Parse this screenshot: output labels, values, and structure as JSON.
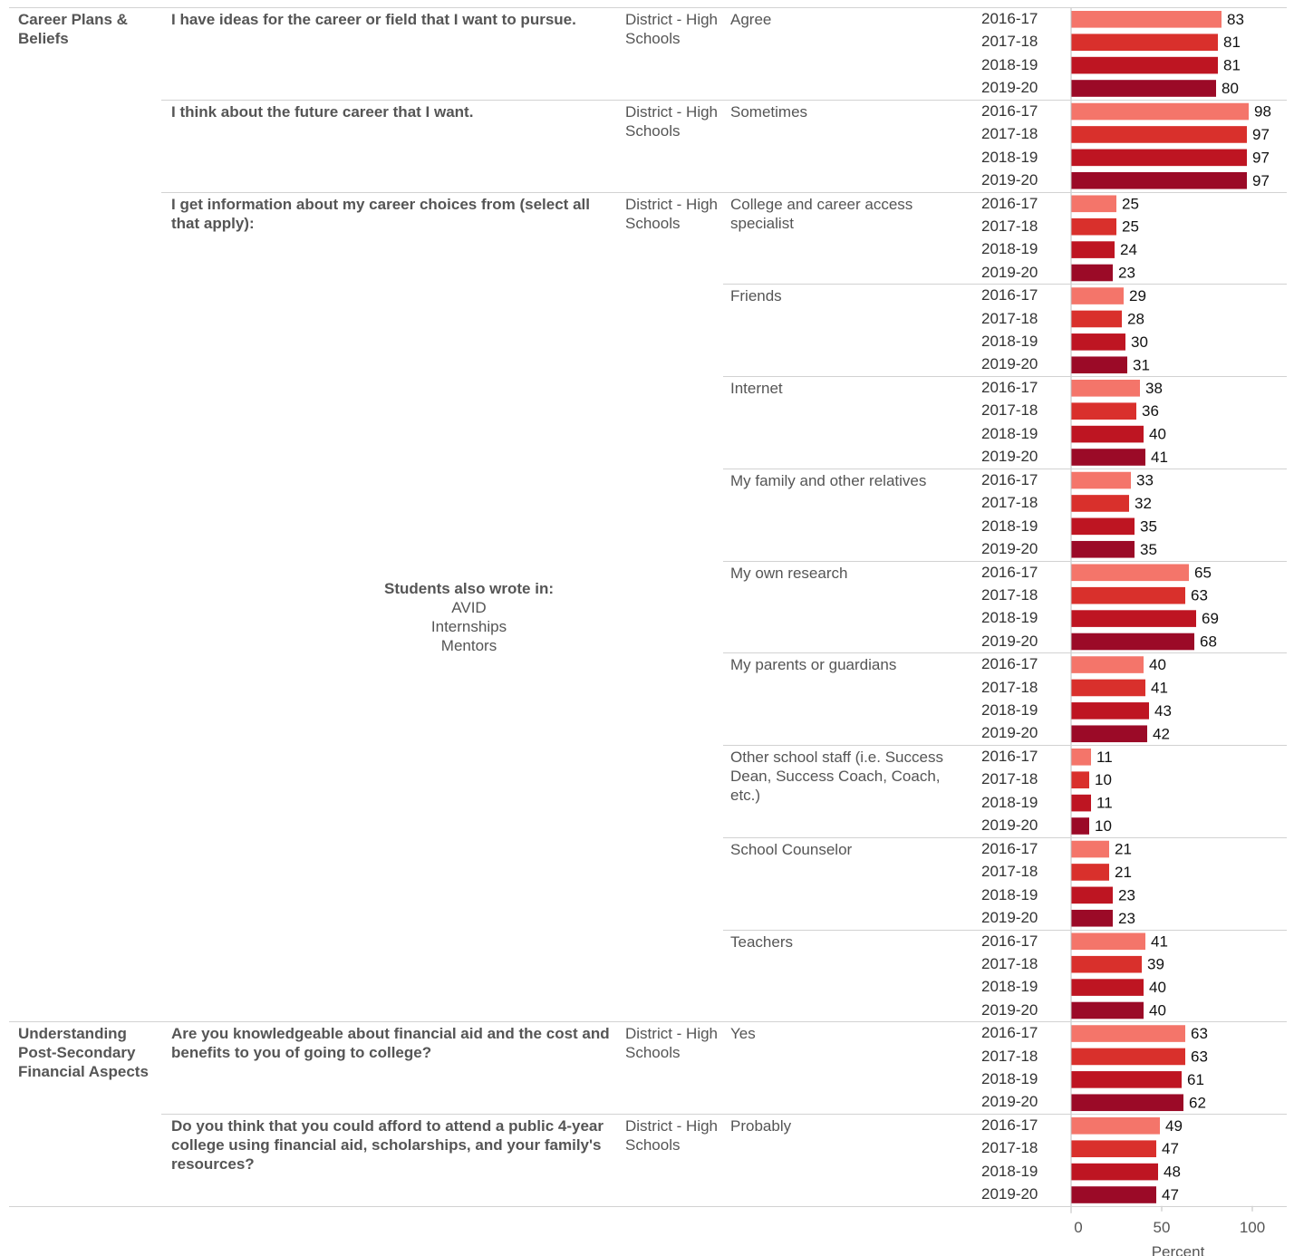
{
  "chart_data": {
    "type": "bar",
    "orientation": "horizontal",
    "xlabel": "Percent",
    "xlim": [
      0,
      100
    ],
    "xticks": [
      "0",
      "50",
      "100"
    ],
    "colors": {
      "2016-17": "#f4756a",
      "2017-18": "#d9302c",
      "2018-19": "#be1522",
      "2019-20": "#9b0a27"
    },
    "sections": [
      {
        "category": "Career Plans & Beliefs",
        "questions": [
          {
            "question": "I have ideas for the career or field that I want to pursue.",
            "group": "District - High Schools",
            "responses": [
              {
                "answer": "Agree",
                "years": [
                  "2016-17",
                  "2017-18",
                  "2018-19",
                  "2019-20"
                ],
                "values": [
                  83,
                  81,
                  81,
                  80
                ]
              }
            ]
          },
          {
            "question": "I think about the future career that I want.",
            "group": "District - High Schools",
            "responses": [
              {
                "answer": "Sometimes",
                "years": [
                  "2016-17",
                  "2017-18",
                  "2018-19",
                  "2019-20"
                ],
                "values": [
                  98,
                  97,
                  97,
                  97
                ]
              }
            ]
          },
          {
            "question": "I get information about my career choices from (select all that apply):",
            "group": "District - High Schools",
            "write_in": {
              "title": "Students also wrote in:",
              "items": [
                "AVID",
                "Internships",
                "Mentors"
              ]
            },
            "responses": [
              {
                "answer": "College and career access specialist",
                "years": [
                  "2016-17",
                  "2017-18",
                  "2018-19",
                  "2019-20"
                ],
                "values": [
                  25,
                  25,
                  24,
                  23
                ]
              },
              {
                "answer": "Friends",
                "years": [
                  "2016-17",
                  "2017-18",
                  "2018-19",
                  "2019-20"
                ],
                "values": [
                  29,
                  28,
                  30,
                  31
                ]
              },
              {
                "answer": "Internet",
                "years": [
                  "2016-17",
                  "2017-18",
                  "2018-19",
                  "2019-20"
                ],
                "values": [
                  38,
                  36,
                  40,
                  41
                ]
              },
              {
                "answer": "My family and other relatives",
                "years": [
                  "2016-17",
                  "2017-18",
                  "2018-19",
                  "2019-20"
                ],
                "values": [
                  33,
                  32,
                  35,
                  35
                ]
              },
              {
                "answer": "My own research",
                "years": [
                  "2016-17",
                  "2017-18",
                  "2018-19",
                  "2019-20"
                ],
                "values": [
                  65,
                  63,
                  69,
                  68
                ]
              },
              {
                "answer": "My parents or guardians",
                "years": [
                  "2016-17",
                  "2017-18",
                  "2018-19",
                  "2019-20"
                ],
                "values": [
                  40,
                  41,
                  43,
                  42
                ]
              },
              {
                "answer": "Other school staff (i.e. Success Dean, Success Coach, Coach, etc.)",
                "years": [
                  "2016-17",
                  "2017-18",
                  "2018-19",
                  "2019-20"
                ],
                "values": [
                  11,
                  10,
                  11,
                  10
                ]
              },
              {
                "answer": "School Counselor",
                "years": [
                  "2016-17",
                  "2017-18",
                  "2018-19",
                  "2019-20"
                ],
                "values": [
                  21,
                  21,
                  23,
                  23
                ]
              },
              {
                "answer": "Teachers",
                "years": [
                  "2016-17",
                  "2017-18",
                  "2018-19",
                  "2019-20"
                ],
                "values": [
                  41,
                  39,
                  40,
                  40
                ]
              }
            ]
          }
        ]
      },
      {
        "category": "Understanding Post-Secondary Financial Aspects",
        "questions": [
          {
            "question": "Are you knowledgeable about financial aid and the cost and benefits to you of going to college?",
            "group": "District - High Schools",
            "responses": [
              {
                "answer": "Yes",
                "years": [
                  "2016-17",
                  "2017-18",
                  "2018-19",
                  "2019-20"
                ],
                "values": [
                  63,
                  63,
                  61,
                  62
                ]
              }
            ]
          },
          {
            "question": "Do you think that you could afford to attend a public 4-year college using financial aid, scholarships, and your family's resources?",
            "group": "District - High Schools",
            "responses": [
              {
                "answer": "Probably",
                "years": [
                  "2016-17",
                  "2017-18",
                  "2018-19",
                  "2019-20"
                ],
                "values": [
                  49,
                  47,
                  48,
                  47
                ]
              }
            ]
          }
        ]
      }
    ]
  }
}
